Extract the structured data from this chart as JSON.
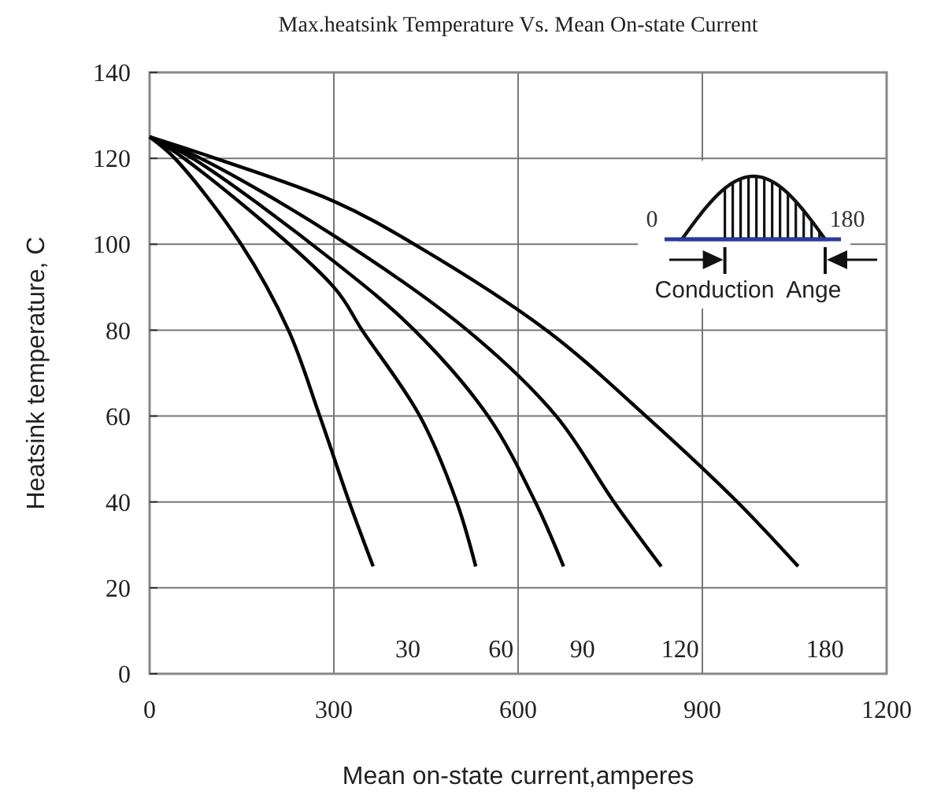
{
  "chart_data": {
    "type": "line",
    "title": "Max.heatsink Temperature Vs. Mean On-state Current",
    "xlabel": "Mean on-state current,amperes",
    "ylabel": "Heatsink temperature, C",
    "xlim": [
      0,
      1200
    ],
    "xticks": [
      0,
      300,
      600,
      900,
      1200
    ],
    "ylim": [
      0,
      140
    ],
    "yticks": [
      0,
      20,
      40,
      60,
      80,
      100,
      120,
      140
    ],
    "grid": true,
    "marker": "none",
    "line_style": "solid",
    "series": [
      {
        "name": "30",
        "color": "#000000",
        "x": [
          0,
          41,
          149,
          226,
          277,
          325,
          364
        ],
        "values": [
          125,
          120,
          100,
          80,
          60,
          40,
          25
        ]
      },
      {
        "name": "60",
        "color": "#000000",
        "x": [
          0,
          56,
          300,
          346,
          440,
          500,
          531
        ],
        "values": [
          125,
          120,
          90,
          80,
          60,
          40,
          25
        ]
      },
      {
        "name": "90",
        "color": "#000000",
        "x": [
          0,
          70,
          300,
          431,
          551,
          628,
          674
        ],
        "values": [
          125,
          120,
          96,
          80,
          60,
          40,
          25
        ]
      },
      {
        "name": "120",
        "color": "#000000",
        "x": [
          0,
          83,
          300,
          517,
          662,
          756,
          833
        ],
        "values": [
          125,
          120,
          102,
          80,
          60,
          40,
          25
        ]
      },
      {
        "name": "180",
        "color": "#000000",
        "x": [
          0,
          107,
          300,
          431,
          646,
          808,
          957,
          1056
        ],
        "values": [
          125,
          120,
          110,
          100,
          80,
          60,
          40,
          25
        ]
      }
    ],
    "annotations": [
      "0",
      "180",
      "Conduction  Ange"
    ]
  }
}
